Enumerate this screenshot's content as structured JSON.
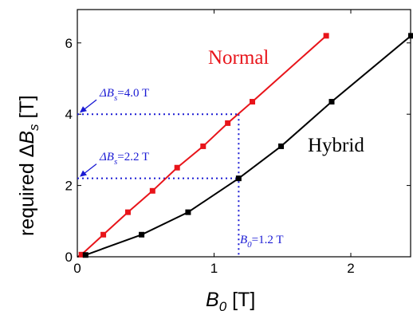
{
  "chart_data": {
    "type": "line",
    "title": "",
    "xlabel": "B_0 [T]",
    "ylabel": "required ΔB_s [T]",
    "xlim": [
      0,
      2.5
    ],
    "ylim": [
      0,
      7
    ],
    "xticks": [
      0,
      1,
      2
    ],
    "yticks": [
      0,
      2,
      4,
      6
    ],
    "grid": false,
    "series": [
      {
        "name": "Normal",
        "color": "#e8141a",
        "x": [
          0,
          0.03,
          0.19,
          0.37,
          0.55,
          0.73,
          0.92,
          1.1,
          1.28,
          1.82
        ],
        "y": [
          0,
          0.06,
          0.62,
          1.25,
          1.85,
          2.5,
          3.1,
          3.75,
          4.35,
          6.2
        ]
      },
      {
        "name": "Hybrid",
        "color": "#000000",
        "x": [
          0,
          0.06,
          0.47,
          0.81,
          1.18,
          1.49,
          1.86,
          2.44
        ],
        "y": [
          0,
          0.05,
          0.62,
          1.25,
          2.2,
          3.1,
          4.35,
          6.2
        ]
      }
    ],
    "annotations": {
      "delta_bs_high": {
        "label": "ΔB",
        "sub": "s",
        "value": "=4.0 T",
        "x": 1.18,
        "y": 4.0
      },
      "delta_bs_low": {
        "label": "ΔB",
        "sub": "s",
        "value": "=2.2 T",
        "x": 1.18,
        "y": 2.2
      },
      "b0": {
        "label": "B",
        "sub": "0",
        "value": "=1.2 T",
        "x": 1.18
      }
    },
    "annotation_color": "#1a1ad4"
  }
}
